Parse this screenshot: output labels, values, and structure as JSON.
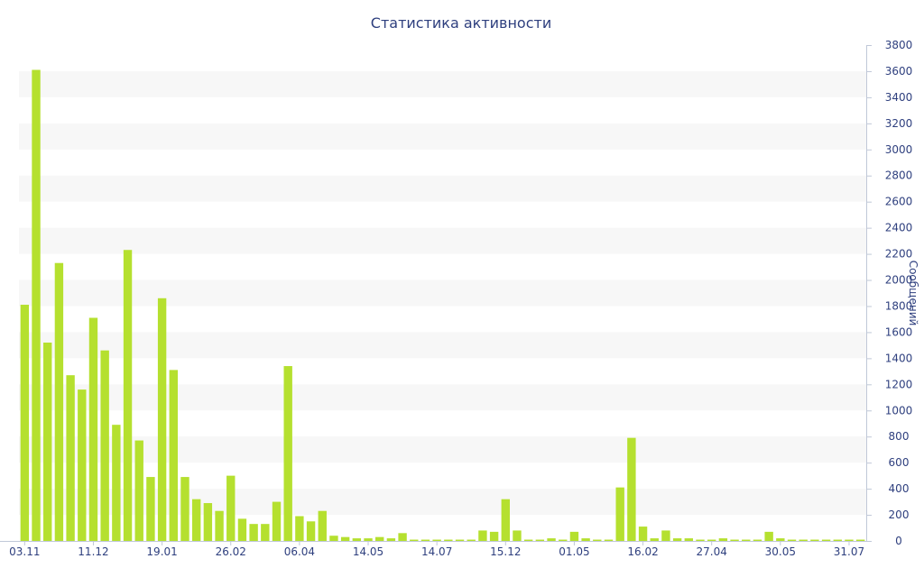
{
  "chart_data": {
    "type": "bar",
    "title": "Статистика активности",
    "ylabel": "Сообщений",
    "xlabel": "",
    "ylim": [
      0,
      3800
    ],
    "ytick_step": 200,
    "y_axis_side": "right",
    "grid": "alternating horizontal bands",
    "legend": "none",
    "bar_color": "#b5e02f",
    "band_color": "#f7f7f7",
    "text_color": "#2e3f7e",
    "x_tick_labels": [
      {
        "index": 0,
        "label": "03.11"
      },
      {
        "index": 6,
        "label": "11.12"
      },
      {
        "index": 12,
        "label": "19.01"
      },
      {
        "index": 18,
        "label": "26.02"
      },
      {
        "index": 24,
        "label": "06.04"
      },
      {
        "index": 30,
        "label": "14.05"
      },
      {
        "index": 36,
        "label": "14.07"
      },
      {
        "index": 42,
        "label": "15.12"
      },
      {
        "index": 48,
        "label": "01.05"
      },
      {
        "index": 54,
        "label": "16.02"
      },
      {
        "index": 60,
        "label": "27.04"
      },
      {
        "index": 66,
        "label": "30.05"
      },
      {
        "index": 72,
        "label": "31.07"
      }
    ],
    "values": [
      1810,
      3610,
      1520,
      2130,
      1270,
      1160,
      1710,
      1460,
      890,
      2230,
      770,
      490,
      1860,
      1310,
      490,
      320,
      290,
      230,
      500,
      170,
      130,
      130,
      300,
      1340,
      190,
      150,
      230,
      40,
      30,
      20,
      20,
      30,
      20,
      60,
      10,
      10,
      10,
      10,
      10,
      10,
      80,
      70,
      320,
      80,
      10,
      10,
      20,
      10,
      70,
      20,
      10,
      10,
      410,
      790,
      110,
      20,
      80,
      20,
      20,
      10,
      10,
      20,
      10,
      10,
      10,
      70,
      20,
      10,
      10,
      10,
      10,
      10,
      10,
      10
    ]
  }
}
